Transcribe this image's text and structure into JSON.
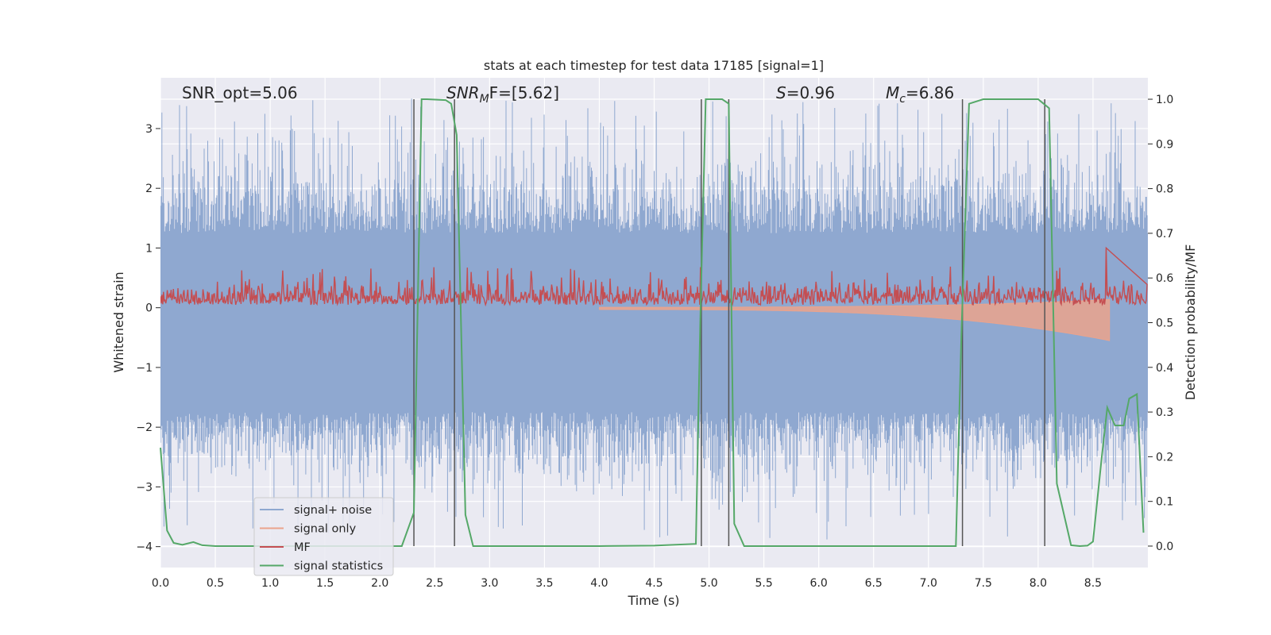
{
  "chart_data": {
    "type": "line",
    "title": "stats at each timestep for test data 17185 [signal=1]",
    "xlabel": "Time (s)",
    "ylabel_left": "Whitened strain",
    "ylabel_right": "Detection probability/MF",
    "xlim": [
      0.0,
      9.0
    ],
    "ylim_left": [
      -4.35,
      3.85
    ],
    "ylim_right": [
      -0.048,
      1.048
    ],
    "x_ticks": [
      0.0,
      0.5,
      1.0,
      1.5,
      2.0,
      2.5,
      3.0,
      3.5,
      4.0,
      4.5,
      5.0,
      5.5,
      6.0,
      6.5,
      7.0,
      7.5,
      8.0,
      8.5
    ],
    "x_tick_labels": [
      "0.0",
      "0.5",
      "1.0",
      "1.5",
      "2.0",
      "2.5",
      "3.0",
      "3.5",
      "4.0",
      "4.5",
      "5.0",
      "5.5",
      "6.0",
      "6.5",
      "7.0",
      "7.5",
      "8.0",
      "8.5"
    ],
    "y_left_ticks": [
      -4,
      -3,
      -2,
      -1,
      0,
      1,
      2,
      3
    ],
    "y_left_tick_labels": [
      "−4",
      "−3",
      "−2",
      "−1",
      "0",
      "1",
      "2",
      "3"
    ],
    "y_right_ticks": [
      0.0,
      0.1,
      0.2,
      0.3,
      0.4,
      0.5,
      0.6,
      0.7,
      0.8,
      0.9,
      1.0
    ],
    "y_right_tick_labels": [
      "0.0",
      "0.1",
      "0.2",
      "0.3",
      "0.4",
      "0.5",
      "0.6",
      "0.7",
      "0.8",
      "0.9",
      "1.0"
    ],
    "grid": true,
    "legend": {
      "placement": "lower-left",
      "entries": [
        {
          "label": "signal+ noise",
          "color": "#8fa8d0"
        },
        {
          "label": "signal only",
          "color": "#eba38c"
        },
        {
          "label": "MF",
          "color": "#c44e52"
        },
        {
          "label": "signal statistics",
          "color": "#55a868"
        }
      ]
    },
    "annotations": {
      "snr_opt": "SNR_opt=5.06",
      "snr_mf_main": "SNR",
      "snr_mf_sub": "M",
      "snr_mf_rest": "F=[5.62]",
      "s_main": "S",
      "s_rest": "=0.96",
      "mc_main": "M",
      "mc_sub": "c",
      "mc_rest": "=6.86"
    },
    "vertical_lines_x": [
      2.31,
      2.68,
      4.93,
      5.18,
      7.31,
      8.06
    ],
    "series": [
      {
        "name": "signal+ noise",
        "axis": "left",
        "color": "#8fa8d0",
        "description_range": [
          -4.0,
          3.5
        ],
        "band": [
          -1.75,
          1.25
        ]
      },
      {
        "name": "signal only",
        "axis": "left",
        "color": "#eba38c",
        "chirp": {
          "start": 4.0,
          "end": 8.65,
          "max_amplitude": 0.52
        }
      },
      {
        "name": "MF",
        "axis": "left",
        "color": "#c44e52",
        "band": [
          0.0,
          0.45
        ],
        "spike": {
          "x": 8.62,
          "y": 1.0
        }
      },
      {
        "name": "signal statistics",
        "axis": "right",
        "color": "#55a868",
        "x": [
          0.0,
          0.06,
          0.12,
          0.2,
          0.3,
          0.38,
          0.5,
          1.0,
          1.5,
          2.0,
          2.2,
          2.31,
          2.38,
          2.43,
          2.6,
          2.65,
          2.7,
          2.78,
          2.85,
          3.0,
          4.0,
          4.5,
          4.88,
          4.92,
          4.97,
          5.02,
          5.12,
          5.18,
          5.23,
          5.32,
          5.5,
          7.0,
          7.25,
          7.3,
          7.37,
          7.5,
          8.0,
          8.05,
          8.1,
          8.17,
          8.3,
          8.38,
          8.45,
          8.5,
          8.58,
          8.63,
          8.7,
          8.78,
          8.83,
          8.9,
          8.96
        ],
        "y": [
          0.22,
          0.035,
          0.007,
          0.003,
          0.009,
          0.002,
          0.0,
          0.0,
          0.0,
          0.0,
          0.0,
          0.075,
          1.0,
          1.0,
          0.998,
          0.99,
          0.92,
          0.07,
          0.0,
          0.0,
          0.0,
          0.001,
          0.005,
          0.5,
          1.0,
          1.0,
          1.0,
          0.99,
          0.05,
          0.0,
          0.0,
          0.0,
          0.0,
          0.47,
          0.99,
          1.0,
          1.0,
          0.99,
          0.98,
          0.14,
          0.002,
          0.0,
          0.001,
          0.01,
          0.2,
          0.31,
          0.27,
          0.27,
          0.33,
          0.34,
          0.03
        ]
      }
    ]
  }
}
